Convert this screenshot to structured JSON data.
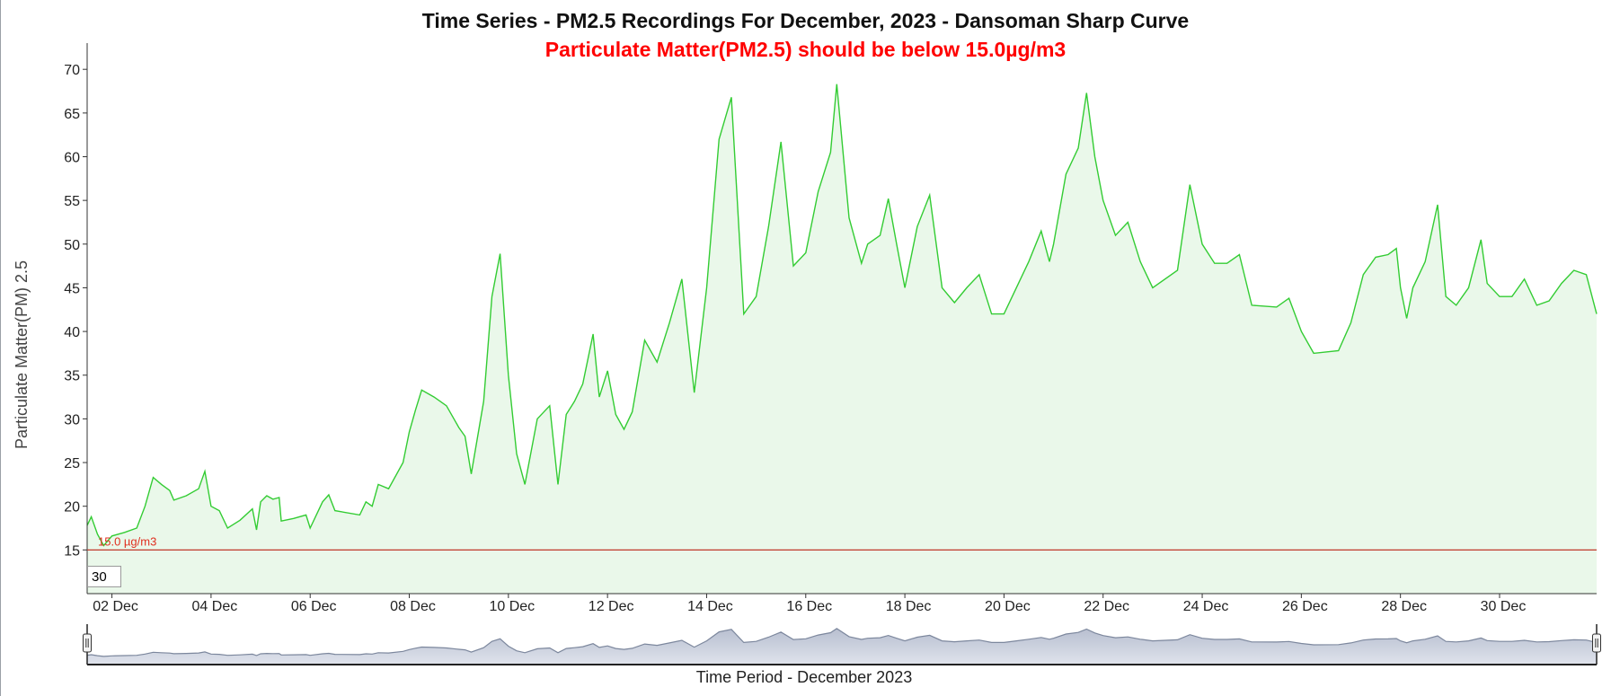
{
  "chart_data": {
    "type": "area",
    "title": "Time Series - PM2.5 Recordings For December, 2023 - Dansoman Sharp Curve",
    "subtitle": "Particulate Matter(PM2.5) should be below 15.0µg/m3",
    "ylabel": "Particulate Matter(PM) 2.5",
    "xlabel": "Time Period - December 2023",
    "ylim": [
      10,
      73
    ],
    "xlim": [
      "2023-12-01T12:00",
      "2023-12-31T23:00"
    ],
    "yticks": [
      15,
      20,
      25,
      30,
      35,
      40,
      45,
      50,
      55,
      60,
      65,
      70
    ],
    "xticks": [
      {
        "date": "2023-12-02",
        "label": "02 Dec"
      },
      {
        "date": "2023-12-04",
        "label": "04 Dec"
      },
      {
        "date": "2023-12-06",
        "label": "06 Dec"
      },
      {
        "date": "2023-12-08",
        "label": "08 Dec"
      },
      {
        "date": "2023-12-10",
        "label": "10 Dec"
      },
      {
        "date": "2023-12-12",
        "label": "12 Dec"
      },
      {
        "date": "2023-12-14",
        "label": "14 Dec"
      },
      {
        "date": "2023-12-16",
        "label": "16 Dec"
      },
      {
        "date": "2023-12-18",
        "label": "18 Dec"
      },
      {
        "date": "2023-12-20",
        "label": "20 Dec"
      },
      {
        "date": "2023-12-22",
        "label": "22 Dec"
      },
      {
        "date": "2023-12-24",
        "label": "24 Dec"
      },
      {
        "date": "2023-12-26",
        "label": "26 Dec"
      },
      {
        "date": "2023-12-28",
        "label": "28 Dec"
      },
      {
        "date": "2023-12-30",
        "label": "30 Dec"
      }
    ],
    "threshold": {
      "value": 15.0,
      "label": "15.0 µg/m3",
      "color": "#c0392b"
    },
    "line_color": "#33cc33",
    "fill_color": "#eaf8ea",
    "grid": false,
    "legend": "none",
    "rolling_period": "30",
    "points": [
      [
        "2023-12-01T12:00",
        17.8
      ],
      [
        "2023-12-01T14:00",
        18.8
      ],
      [
        "2023-12-01T17:00",
        16.8
      ],
      [
        "2023-12-01T20:00",
        15.5
      ],
      [
        "2023-12-02T00:00",
        16.6
      ],
      [
        "2023-12-02T06:00",
        17.0
      ],
      [
        "2023-12-02T12:00",
        17.5
      ],
      [
        "2023-12-02T16:00",
        20.0
      ],
      [
        "2023-12-02T20:00",
        23.3
      ],
      [
        "2023-12-03T00:00",
        22.5
      ],
      [
        "2023-12-03T04:00",
        21.8
      ],
      [
        "2023-12-03T06:00",
        20.7
      ],
      [
        "2023-12-03T12:00",
        21.2
      ],
      [
        "2023-12-03T18:00",
        22.0
      ],
      [
        "2023-12-03T21:00",
        24.0
      ],
      [
        "2023-12-04T00:00",
        20.0
      ],
      [
        "2023-12-04T04:00",
        19.5
      ],
      [
        "2023-12-04T08:00",
        17.5
      ],
      [
        "2023-12-04T14:00",
        18.4
      ],
      [
        "2023-12-04T20:00",
        19.7
      ],
      [
        "2023-12-04T22:00",
        17.3
      ],
      [
        "2023-12-05T00:00",
        20.5
      ],
      [
        "2023-12-05T03:00",
        21.2
      ],
      [
        "2023-12-05T06:00",
        20.8
      ],
      [
        "2023-12-05T09:00",
        21.0
      ],
      [
        "2023-12-05T10:00",
        18.3
      ],
      [
        "2023-12-05T16:00",
        18.6
      ],
      [
        "2023-12-05T22:00",
        19.0
      ],
      [
        "2023-12-06T00:00",
        17.5
      ],
      [
        "2023-12-06T06:00",
        20.5
      ],
      [
        "2023-12-06T09:00",
        21.3
      ],
      [
        "2023-12-06T12:00",
        19.5
      ],
      [
        "2023-12-07T00:00",
        19.0
      ],
      [
        "2023-12-07T03:00",
        20.5
      ],
      [
        "2023-12-07T06:00",
        20.0
      ],
      [
        "2023-12-07T09:00",
        22.5
      ],
      [
        "2023-12-07T14:00",
        22.0
      ],
      [
        "2023-12-07T21:00",
        25.0
      ],
      [
        "2023-12-08T00:00",
        28.5
      ],
      [
        "2023-12-08T03:00",
        31.0
      ],
      [
        "2023-12-08T06:00",
        33.3
      ],
      [
        "2023-12-08T12:00",
        32.5
      ],
      [
        "2023-12-08T18:00",
        31.5
      ],
      [
        "2023-12-09T00:00",
        29.0
      ],
      [
        "2023-12-09T03:00",
        28.0
      ],
      [
        "2023-12-09T06:00",
        23.7
      ],
      [
        "2023-12-09T12:00",
        32.0
      ],
      [
        "2023-12-09T16:00",
        44.0
      ],
      [
        "2023-12-09T20:00",
        48.9
      ],
      [
        "2023-12-10T00:00",
        35.0
      ],
      [
        "2023-12-10T04:00",
        26.0
      ],
      [
        "2023-12-10T08:00",
        22.5
      ],
      [
        "2023-12-10T14:00",
        30.0
      ],
      [
        "2023-12-10T20:00",
        31.5
      ],
      [
        "2023-12-11T00:00",
        22.5
      ],
      [
        "2023-12-11T04:00",
        30.5
      ],
      [
        "2023-12-11T08:00",
        32.0
      ],
      [
        "2023-12-11T12:00",
        34.0
      ],
      [
        "2023-12-11T17:00",
        39.7
      ],
      [
        "2023-12-11T20:00",
        32.5
      ],
      [
        "2023-12-12T00:00",
        35.5
      ],
      [
        "2023-12-12T04:00",
        30.5
      ],
      [
        "2023-12-12T08:00",
        28.8
      ],
      [
        "2023-12-12T12:00",
        30.8
      ],
      [
        "2023-12-12T18:00",
        39.0
      ],
      [
        "2023-12-13T00:00",
        36.5
      ],
      [
        "2023-12-13T06:00",
        41.0
      ],
      [
        "2023-12-13T12:00",
        46.0
      ],
      [
        "2023-12-13T18:00",
        33.0
      ],
      [
        "2023-12-14T00:00",
        45.0
      ],
      [
        "2023-12-14T06:00",
        62.0
      ],
      [
        "2023-12-14T12:00",
        66.8
      ],
      [
        "2023-12-14T18:00",
        42.0
      ],
      [
        "2023-12-15T00:00",
        44.0
      ],
      [
        "2023-12-15T06:00",
        52.0
      ],
      [
        "2023-12-15T12:00",
        61.7
      ],
      [
        "2023-12-15T18:00",
        47.5
      ],
      [
        "2023-12-16T00:00",
        49.0
      ],
      [
        "2023-12-16T06:00",
        56.0
      ],
      [
        "2023-12-16T12:00",
        60.5
      ],
      [
        "2023-12-16T15:00",
        68.3
      ],
      [
        "2023-12-16T21:00",
        53.0
      ],
      [
        "2023-12-17T03:00",
        47.8
      ],
      [
        "2023-12-17T06:00",
        50.0
      ],
      [
        "2023-12-17T12:00",
        51.0
      ],
      [
        "2023-12-17T16:00",
        55.2
      ],
      [
        "2023-12-17T20:00",
        50.0
      ],
      [
        "2023-12-18T00:00",
        45.0
      ],
      [
        "2023-12-18T06:00",
        52.0
      ],
      [
        "2023-12-18T12:00",
        55.6
      ],
      [
        "2023-12-18T18:00",
        45.0
      ],
      [
        "2023-12-19T00:00",
        43.3
      ],
      [
        "2023-12-19T06:00",
        45.0
      ],
      [
        "2023-12-19T12:00",
        46.5
      ],
      [
        "2023-12-19T18:00",
        42.0
      ],
      [
        "2023-12-20T00:00",
        42.0
      ],
      [
        "2023-12-20T06:00",
        45.0
      ],
      [
        "2023-12-20T12:00",
        48.0
      ],
      [
        "2023-12-20T18:00",
        51.5
      ],
      [
        "2023-12-20T22:00",
        48.0
      ],
      [
        "2023-12-21T00:00",
        50.0
      ],
      [
        "2023-12-21T06:00",
        58.0
      ],
      [
        "2023-12-21T12:00",
        61.0
      ],
      [
        "2023-12-21T16:00",
        67.3
      ],
      [
        "2023-12-21T20:00",
        60.0
      ],
      [
        "2023-12-22T00:00",
        55.0
      ],
      [
        "2023-12-22T06:00",
        51.0
      ],
      [
        "2023-12-22T12:00",
        52.5
      ],
      [
        "2023-12-22T18:00",
        48.0
      ],
      [
        "2023-12-23T00:00",
        45.0
      ],
      [
        "2023-12-23T12:00",
        47.0
      ],
      [
        "2023-12-23T18:00",
        56.8
      ],
      [
        "2023-12-24T00:00",
        50.0
      ],
      [
        "2023-12-24T06:00",
        47.8
      ],
      [
        "2023-12-24T12:00",
        47.8
      ],
      [
        "2023-12-24T18:00",
        48.8
      ],
      [
        "2023-12-25T00:00",
        43.0
      ],
      [
        "2023-12-25T12:00",
        42.8
      ],
      [
        "2023-12-25T18:00",
        43.8
      ],
      [
        "2023-12-26T00:00",
        40.0
      ],
      [
        "2023-12-26T06:00",
        37.5
      ],
      [
        "2023-12-26T18:00",
        37.8
      ],
      [
        "2023-12-27T00:00",
        41.0
      ],
      [
        "2023-12-27T06:00",
        46.5
      ],
      [
        "2023-12-27T12:00",
        48.5
      ],
      [
        "2023-12-27T18:00",
        48.8
      ],
      [
        "2023-12-27T22:00",
        49.5
      ],
      [
        "2023-12-28T00:00",
        45.0
      ],
      [
        "2023-12-28T03:00",
        41.5
      ],
      [
        "2023-12-28T06:00",
        45.0
      ],
      [
        "2023-12-28T12:00",
        48.0
      ],
      [
        "2023-12-28T18:00",
        54.5
      ],
      [
        "2023-12-28T22:00",
        44.0
      ],
      [
        "2023-12-29T03:00",
        43.0
      ],
      [
        "2023-12-29T09:00",
        45.0
      ],
      [
        "2023-12-29T15:00",
        50.5
      ],
      [
        "2023-12-29T18:00",
        45.5
      ],
      [
        "2023-12-30T00:00",
        44.0
      ],
      [
        "2023-12-30T06:00",
        44.0
      ],
      [
        "2023-12-30T12:00",
        46.0
      ],
      [
        "2023-12-30T18:00",
        43.0
      ],
      [
        "2023-12-31T00:00",
        43.5
      ],
      [
        "2023-12-31T06:00",
        45.5
      ],
      [
        "2023-12-31T12:00",
        47.0
      ],
      [
        "2023-12-31T18:00",
        46.5
      ],
      [
        "2023-12-31T23:00",
        42.0
      ]
    ]
  }
}
